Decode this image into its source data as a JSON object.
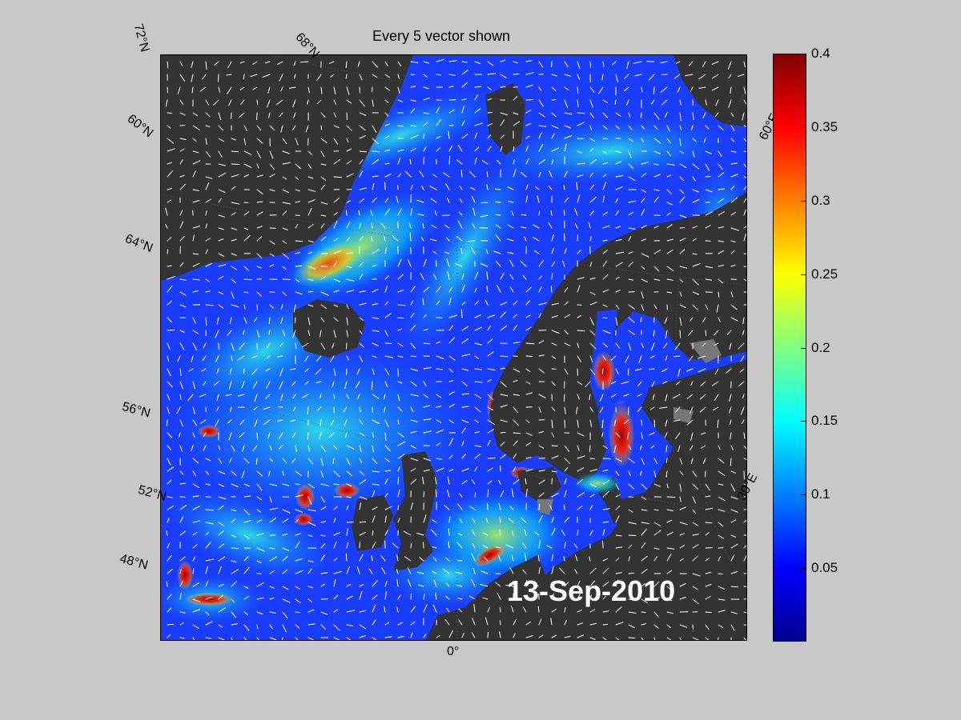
{
  "title": "Every 5 vector shown",
  "date_label": "13-Sep-2010",
  "colorbar": {
    "min": 0,
    "max": 0.4,
    "ticks": [
      "0.4",
      "0.35",
      "0.3",
      "0.25",
      "0.2",
      "0.15",
      "0.1",
      "0.05"
    ],
    "colormap": "jet"
  },
  "grid_labels": {
    "lat_72": "72°N",
    "lat_68": "68°N",
    "lat_64": "64°N",
    "lat_60": "60°N",
    "lat_56": "56°N",
    "lat_52": "52°N",
    "lat_48": "48°N",
    "lon_0": "0°",
    "lon_30e": "30°E",
    "lon_60e": "60°E"
  },
  "colors": {
    "land": "#333333",
    "ocean_base": "#1a3cff",
    "background": "#c8c8c8",
    "vectors": "#ffffff"
  }
}
